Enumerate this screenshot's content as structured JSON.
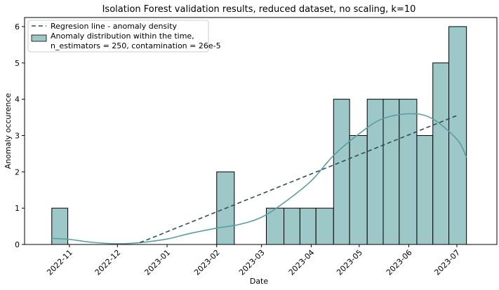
{
  "chart_data": {
    "type": "bar",
    "title": "Isolation Forest validation results, reduced dataset, no scaling, k=10",
    "xlabel": "Date",
    "ylabel": "Anomaly occurence",
    "ylim": [
      0,
      6.25
    ],
    "y_ticks": [
      "0",
      "1",
      "2",
      "3",
      "4",
      "5",
      "6"
    ],
    "x_ticks": [
      "2022-11",
      "2022-12",
      "2023-01",
      "2023-02",
      "2023-03",
      "2023-04",
      "2023-05",
      "2023-06",
      "2023-07"
    ],
    "grid": false,
    "legend_position": "upper-left",
    "bar_color": "#9ec7c8",
    "kde_color": "#5a9ea0",
    "regression_color": "#2f4f4f",
    "bins": [
      {
        "start": "2022-10-21",
        "end": "2022-10-31",
        "count": 1
      },
      {
        "start": "2022-10-31",
        "end": "2022-11-11",
        "count": 0
      },
      {
        "start": "2022-11-11",
        "end": "2022-11-21",
        "count": 0
      },
      {
        "start": "2022-11-21",
        "end": "2022-12-01",
        "count": 0
      },
      {
        "start": "2022-12-01",
        "end": "2022-12-12",
        "count": 0
      },
      {
        "start": "2022-12-12",
        "end": "2022-12-22",
        "count": 0
      },
      {
        "start": "2022-12-22",
        "end": "2023-01-01",
        "count": 0
      },
      {
        "start": "2023-01-01",
        "end": "2023-01-12",
        "count": 0
      },
      {
        "start": "2023-01-12",
        "end": "2023-01-22",
        "count": 0
      },
      {
        "start": "2023-01-22",
        "end": "2023-02-01",
        "count": 0
      },
      {
        "start": "2023-02-01",
        "end": "2023-02-12",
        "count": 2
      },
      {
        "start": "2023-02-12",
        "end": "2023-02-22",
        "count": 0
      },
      {
        "start": "2023-02-22",
        "end": "2023-03-04",
        "count": 0
      },
      {
        "start": "2023-03-04",
        "end": "2023-03-15",
        "count": 1
      },
      {
        "start": "2023-03-15",
        "end": "2023-03-25",
        "count": 1
      },
      {
        "start": "2023-03-25",
        "end": "2023-04-04",
        "count": 1
      },
      {
        "start": "2023-04-04",
        "end": "2023-04-15",
        "count": 1
      },
      {
        "start": "2023-04-15",
        "end": "2023-04-25",
        "count": 4
      },
      {
        "start": "2023-04-25",
        "end": "2023-05-06",
        "count": 3
      },
      {
        "start": "2023-05-06",
        "end": "2023-05-16",
        "count": 4
      },
      {
        "start": "2023-05-16",
        "end": "2023-05-26",
        "count": 4
      },
      {
        "start": "2023-05-26",
        "end": "2023-06-06",
        "count": 4
      },
      {
        "start": "2023-06-06",
        "end": "2023-06-16",
        "count": 3
      },
      {
        "start": "2023-06-16",
        "end": "2023-06-26",
        "count": 5
      },
      {
        "start": "2023-06-26",
        "end": "2023-07-07",
        "count": 6
      }
    ],
    "kde_curve": {
      "x": [
        "2022-10-21",
        "2022-11-01",
        "2022-11-15",
        "2022-12-01",
        "2022-12-15",
        "2023-01-01",
        "2023-01-15",
        "2023-02-01",
        "2023-02-15",
        "2023-03-01",
        "2023-03-15",
        "2023-04-01",
        "2023-04-15",
        "2023-05-01",
        "2023-05-15",
        "2023-06-01",
        "2023-06-15",
        "2023-07-01",
        "2023-07-07"
      ],
      "y": [
        0.17,
        0.14,
        0.06,
        0.02,
        0.05,
        0.15,
        0.3,
        0.45,
        0.55,
        0.75,
        1.15,
        1.75,
        2.45,
        3.05,
        3.45,
        3.6,
        3.48,
        2.9,
        2.4
      ]
    },
    "regression_line": {
      "x": [
        "2022-12-15",
        "2023-07-01"
      ],
      "y": [
        0.05,
        3.55
      ]
    },
    "series": [
      {
        "name": "Regresion line - anomaly density",
        "style": "dashed-line"
      },
      {
        "name": "Anomaly distribution within the time,\nn_estimators = 250, contamination = 26e-5",
        "style": "bar"
      }
    ]
  }
}
